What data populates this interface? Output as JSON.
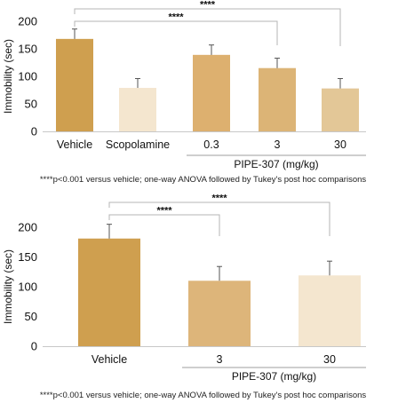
{
  "chart_data": [
    {
      "type": "bar",
      "ylabel": "Immobility (sec)",
      "ylim": [
        0,
        200
      ],
      "yticks": [
        0,
        50,
        100,
        150,
        200
      ],
      "categories": [
        "Vehicle",
        "Scopolamine",
        "0.3",
        "3",
        "30"
      ],
      "values": [
        168,
        79,
        139,
        115,
        78
      ],
      "errors": [
        18,
        17,
        18,
        18,
        18
      ],
      "colors": [
        "#cf9f4f",
        "#f4e6cf",
        "#ddb06f",
        "#dcb476",
        "#e3c797"
      ],
      "group_label": "PIPE-307 (mg/kg)",
      "significance": [
        {
          "from": "Vehicle",
          "to": "30",
          "label": "****"
        },
        {
          "from": "Vehicle",
          "to": "3",
          "label": "****"
        }
      ],
      "footnote": "****p<0.001 versus vehicle; one-way ANOVA followed by Tukey's post hoc comparisons"
    },
    {
      "type": "bar",
      "ylabel": "Immobility (sec)",
      "ylim": [
        0,
        200
      ],
      "yticks": [
        0,
        50,
        100,
        150,
        200
      ],
      "categories": [
        "Vehicle",
        "3",
        "30"
      ],
      "values": [
        181,
        110,
        119
      ],
      "errors": [
        24,
        24,
        24
      ],
      "colors": [
        "#cf9f4f",
        "#ddb57a",
        "#f4e6cf"
      ],
      "group_label": "PIPE-307 (mg/kg)",
      "significance": [
        {
          "from": "Vehicle",
          "to": "30",
          "label": "****"
        },
        {
          "from": "Vehicle",
          "to": "3",
          "label": "****"
        }
      ],
      "footnote": "****p<0.001 versus vehicle; one-way ANOVA followed by Tukey's post hoc comparisons"
    }
  ]
}
